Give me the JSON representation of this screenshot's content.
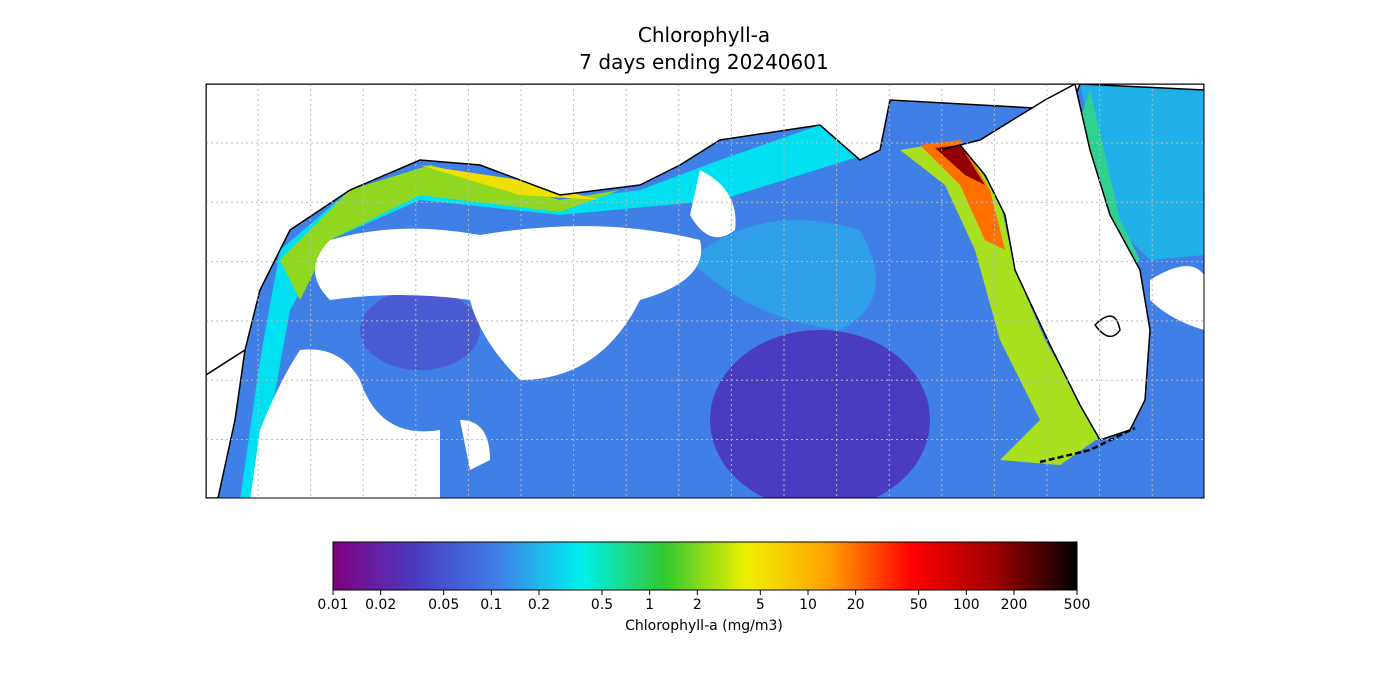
{
  "title": "Chlorophyll-a",
  "subtitle": "7 days ending 20240601",
  "colorbar": {
    "label": "Chlorophyll-a (mg/m3)",
    "scale": "log",
    "lim": [
      0.01,
      500
    ],
    "ticks": [
      0.01,
      0.02,
      0.05,
      0.1,
      0.2,
      0.5,
      1,
      2,
      5,
      10,
      20,
      50,
      100,
      200,
      500
    ],
    "colors": [
      "#7f007f",
      "#4a3cc0",
      "#3f7fe6",
      "#00f0f0",
      "#30c830",
      "#f0f000",
      "#ffa000",
      "#ff0000",
      "#a00000",
      "#000000"
    ]
  }
}
